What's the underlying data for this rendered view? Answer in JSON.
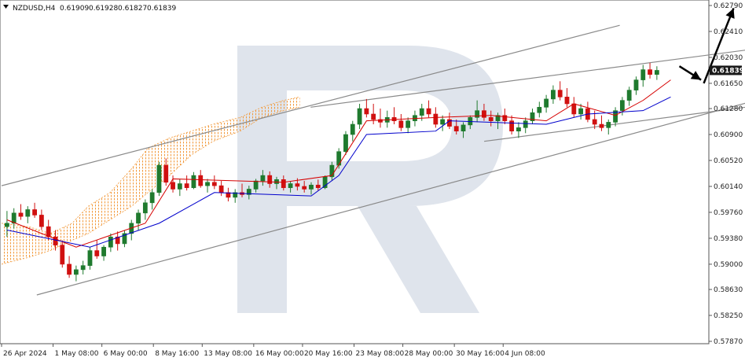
{
  "header": {
    "symbol_timeframe": "NZDUSD,H4",
    "open": "0.61909",
    "high": "0.61928",
    "low": "0.61827",
    "close": "0.61839"
  },
  "current_price_label": "0.61839",
  "colors": {
    "bull_candle": "#1f7a2e",
    "bear_candle": "#d01010",
    "tenkan": "#d60000",
    "kijun": "#0000cc",
    "cloud": "#f29a3c",
    "trend_lines": "#8a8a8a",
    "arrows": "#000000",
    "watermark": "#dfe4ec",
    "price_tag": "#1a1a1a"
  },
  "chart_data": {
    "type": "candlestick",
    "ylim": [
      0.5787,
      0.6279
    ],
    "y_ticks": [
      "0.62790",
      "0.62410",
      "0.62030",
      "0.61650",
      "0.61280",
      "0.60900",
      "0.60520",
      "0.60140",
      "0.59760",
      "0.59380",
      "0.59000",
      "0.58630",
      "0.58250",
      "0.57870"
    ],
    "x_ticks": [
      "26 Apr 2024",
      "1 May 08:00",
      "6 May 00:00",
      "8 May 16:00",
      "13 May 08:00",
      "16 May 00:00",
      "20 May 16:00",
      "23 May 08:00",
      "28 May 00:00",
      "30 May 16:00",
      "4 Jun 08:00"
    ],
    "x_tick_bars": [
      0,
      19,
      37,
      56,
      74,
      93,
      111,
      130,
      148,
      167,
      185
    ],
    "total_bars": 255,
    "candles": [
      [
        0.5955,
        0.5978,
        0.594,
        0.596
      ],
      [
        0.596,
        0.5982,
        0.5952,
        0.5975
      ],
      [
        0.5975,
        0.5988,
        0.5965,
        0.597
      ],
      [
        0.597,
        0.5985,
        0.596,
        0.598
      ],
      [
        0.598,
        0.599,
        0.5968,
        0.5972
      ],
      [
        0.5972,
        0.598,
        0.595,
        0.5955
      ],
      [
        0.5955,
        0.5965,
        0.5935,
        0.594
      ],
      [
        0.594,
        0.595,
        0.592,
        0.5928
      ],
      [
        0.5928,
        0.5935,
        0.5895,
        0.59
      ],
      [
        0.59,
        0.5912,
        0.588,
        0.5885
      ],
      [
        0.5885,
        0.5898,
        0.5875,
        0.5892
      ],
      [
        0.5892,
        0.5905,
        0.5885,
        0.5898
      ],
      [
        0.5898,
        0.5925,
        0.5892,
        0.592
      ],
      [
        0.592,
        0.5935,
        0.5908,
        0.5912
      ],
      [
        0.5912,
        0.5928,
        0.5905,
        0.5925
      ],
      [
        0.5925,
        0.5945,
        0.5918,
        0.594
      ],
      [
        0.594,
        0.5948,
        0.592,
        0.593
      ],
      [
        0.593,
        0.595,
        0.5925,
        0.5945
      ],
      [
        0.5945,
        0.5965,
        0.5935,
        0.596
      ],
      [
        0.596,
        0.598,
        0.595,
        0.5975
      ],
      [
        0.5975,
        0.5995,
        0.5965,
        0.599
      ],
      [
        0.599,
        0.601,
        0.598,
        0.6005
      ],
      [
        0.6005,
        0.605,
        0.6,
        0.6045
      ],
      [
        0.6045,
        0.6055,
        0.6015,
        0.602
      ],
      [
        0.602,
        0.603,
        0.6005,
        0.601
      ],
      [
        0.601,
        0.6025,
        0.6,
        0.6018
      ],
      [
        0.6018,
        0.603,
        0.6008,
        0.6012
      ],
      [
        0.6012,
        0.6035,
        0.601,
        0.603
      ],
      [
        0.603,
        0.6038,
        0.6012,
        0.6015
      ],
      [
        0.6015,
        0.6025,
        0.6005,
        0.602
      ],
      [
        0.602,
        0.603,
        0.601,
        0.6015
      ],
      [
        0.6015,
        0.6022,
        0.6,
        0.6005
      ],
      [
        0.6005,
        0.6012,
        0.5992,
        0.5998
      ],
      [
        0.5998,
        0.601,
        0.599,
        0.6005
      ],
      [
        0.6005,
        0.6018,
        0.5998,
        0.6002
      ],
      [
        0.6002,
        0.6015,
        0.5995,
        0.601
      ],
      [
        0.601,
        0.6025,
        0.6005,
        0.6022
      ],
      [
        0.6022,
        0.6038,
        0.6015,
        0.603
      ],
      [
        0.603,
        0.6036,
        0.6012,
        0.6018
      ],
      [
        0.6018,
        0.6028,
        0.601,
        0.6024
      ],
      [
        0.6024,
        0.603,
        0.6008,
        0.6012
      ],
      [
        0.6012,
        0.6022,
        0.6005,
        0.6018
      ],
      [
        0.6018,
        0.6026,
        0.6008,
        0.6014
      ],
      [
        0.6014,
        0.6022,
        0.6005,
        0.601
      ],
      [
        0.601,
        0.602,
        0.6002,
        0.6016
      ],
      [
        0.6016,
        0.6024,
        0.6008,
        0.6012
      ],
      [
        0.6012,
        0.603,
        0.601,
        0.6028
      ],
      [
        0.6028,
        0.605,
        0.6022,
        0.6045
      ],
      [
        0.6045,
        0.607,
        0.604,
        0.6065
      ],
      [
        0.6065,
        0.6095,
        0.606,
        0.609
      ],
      [
        0.609,
        0.611,
        0.608,
        0.6105
      ],
      [
        0.6105,
        0.6135,
        0.6098,
        0.6128
      ],
      [
        0.6128,
        0.6142,
        0.6115,
        0.612
      ],
      [
        0.612,
        0.6135,
        0.6105,
        0.6112
      ],
      [
        0.6112,
        0.6128,
        0.61,
        0.6108
      ],
      [
        0.6108,
        0.6125,
        0.61,
        0.6115
      ],
      [
        0.6115,
        0.613,
        0.6105,
        0.611
      ],
      [
        0.611,
        0.612,
        0.6095,
        0.61
      ],
      [
        0.61,
        0.6115,
        0.6092,
        0.611
      ],
      [
        0.611,
        0.6125,
        0.6102,
        0.6118
      ],
      [
        0.6118,
        0.6135,
        0.611,
        0.6128
      ],
      [
        0.6128,
        0.614,
        0.6115,
        0.612
      ],
      [
        0.612,
        0.613,
        0.61,
        0.6105
      ],
      [
        0.6105,
        0.6118,
        0.6095,
        0.6112
      ],
      [
        0.6112,
        0.6122,
        0.6098,
        0.6102
      ],
      [
        0.6102,
        0.6112,
        0.609,
        0.6095
      ],
      [
        0.6095,
        0.6108,
        0.6085,
        0.6104
      ],
      [
        0.6104,
        0.6118,
        0.6098,
        0.6115
      ],
      [
        0.6115,
        0.614,
        0.6108,
        0.6125
      ],
      [
        0.6125,
        0.6135,
        0.611,
        0.6115
      ],
      [
        0.6115,
        0.6125,
        0.6102,
        0.611
      ],
      [
        0.611,
        0.6122,
        0.6098,
        0.6118
      ],
      [
        0.6118,
        0.6128,
        0.6105,
        0.611
      ],
      [
        0.611,
        0.6118,
        0.609,
        0.6095
      ],
      [
        0.6095,
        0.6108,
        0.6085,
        0.61
      ],
      [
        0.61,
        0.6115,
        0.6092,
        0.611
      ],
      [
        0.611,
        0.6128,
        0.6105,
        0.6122
      ],
      [
        0.6122,
        0.6138,
        0.6115,
        0.613
      ],
      [
        0.613,
        0.6148,
        0.6122,
        0.6142
      ],
      [
        0.6142,
        0.6162,
        0.6135,
        0.6155
      ],
      [
        0.6155,
        0.6168,
        0.614,
        0.6145
      ],
      [
        0.6145,
        0.6158,
        0.613,
        0.6135
      ],
      [
        0.6135,
        0.6145,
        0.6115,
        0.612
      ],
      [
        0.612,
        0.6135,
        0.6112,
        0.6128
      ],
      [
        0.6128,
        0.6138,
        0.6108,
        0.6112
      ],
      [
        0.6112,
        0.6125,
        0.6098,
        0.6105
      ],
      [
        0.6105,
        0.6118,
        0.6095,
        0.61
      ],
      [
        0.61,
        0.6112,
        0.609,
        0.6108
      ],
      [
        0.6108,
        0.613,
        0.6102,
        0.6125
      ],
      [
        0.6125,
        0.6145,
        0.6118,
        0.614
      ],
      [
        0.614,
        0.616,
        0.6132,
        0.6155
      ],
      [
        0.6155,
        0.6175,
        0.6148,
        0.617
      ],
      [
        0.617,
        0.6192,
        0.616,
        0.6185
      ],
      [
        0.6185,
        0.6195,
        0.6172,
        0.6178
      ],
      [
        0.6178,
        0.619,
        0.617,
        0.6184
      ]
    ],
    "candle_start_bar": 2,
    "candle_step": 2.55,
    "tenkan": [
      [
        0,
        0.5965
      ],
      [
        10,
        0.5925
      ],
      [
        20,
        0.596
      ],
      [
        24,
        0.6025
      ],
      [
        40,
        0.602
      ],
      [
        47,
        0.603
      ],
      [
        52,
        0.611
      ],
      [
        62,
        0.6115
      ],
      [
        70,
        0.6118
      ],
      [
        78,
        0.611
      ],
      [
        82,
        0.6135
      ],
      [
        88,
        0.6118
      ],
      [
        92,
        0.614
      ],
      [
        96,
        0.617
      ]
    ],
    "kijun": [
      [
        0,
        0.595
      ],
      [
        12,
        0.5925
      ],
      [
        22,
        0.596
      ],
      [
        30,
        0.6005
      ],
      [
        44,
        0.6
      ],
      [
        48,
        0.603
      ],
      [
        52,
        0.609
      ],
      [
        62,
        0.6095
      ],
      [
        64,
        0.611
      ],
      [
        78,
        0.6105
      ],
      [
        84,
        0.612
      ],
      [
        92,
        0.6125
      ],
      [
        96,
        0.6145
      ]
    ],
    "cloud_upper": [
      [
        0,
        0.596
      ],
      [
        10,
        0.5955
      ],
      [
        18,
        0.5945
      ],
      [
        26,
        0.596
      ],
      [
        32,
        0.5985
      ],
      [
        40,
        0.6005
      ],
      [
        48,
        0.604
      ],
      [
        54,
        0.607
      ],
      [
        62,
        0.6085
      ],
      [
        70,
        0.6095
      ],
      [
        78,
        0.6105
      ],
      [
        88,
        0.6115
      ],
      [
        96,
        0.613
      ],
      [
        104,
        0.614
      ],
      [
        110,
        0.6145
      ]
    ],
    "cloud_lower": [
      [
        0,
        0.59
      ],
      [
        10,
        0.591
      ],
      [
        18,
        0.592
      ],
      [
        26,
        0.5935
      ],
      [
        32,
        0.5945
      ],
      [
        40,
        0.5965
      ],
      [
        48,
        0.5985
      ],
      [
        54,
        0.6005
      ],
      [
        62,
        0.603
      ],
      [
        70,
        0.606
      ],
      [
        78,
        0.608
      ],
      [
        88,
        0.6095
      ],
      [
        96,
        0.6115
      ],
      [
        104,
        0.6125
      ],
      [
        110,
        0.613
      ]
    ],
    "trend_lines": [
      [
        [
          0,
          0.6015
        ],
        [
          228,
          0.625
        ]
      ],
      [
        [
          13,
          0.5855
        ],
        [
          334,
          0.62
        ]
      ],
      [
        [
          114,
          0.613
        ],
        [
          277,
          0.6215
        ]
      ],
      [
        [
          178,
          0.608
        ],
        [
          342,
          0.6165
        ]
      ]
    ],
    "arrows": [
      {
        "from": [
          259,
          0.6165
        ],
        "to": [
          270,
          0.6275
        ]
      },
      {
        "from": [
          250,
          0.619
        ],
        "to": [
          258,
          0.617
        ]
      }
    ]
  }
}
